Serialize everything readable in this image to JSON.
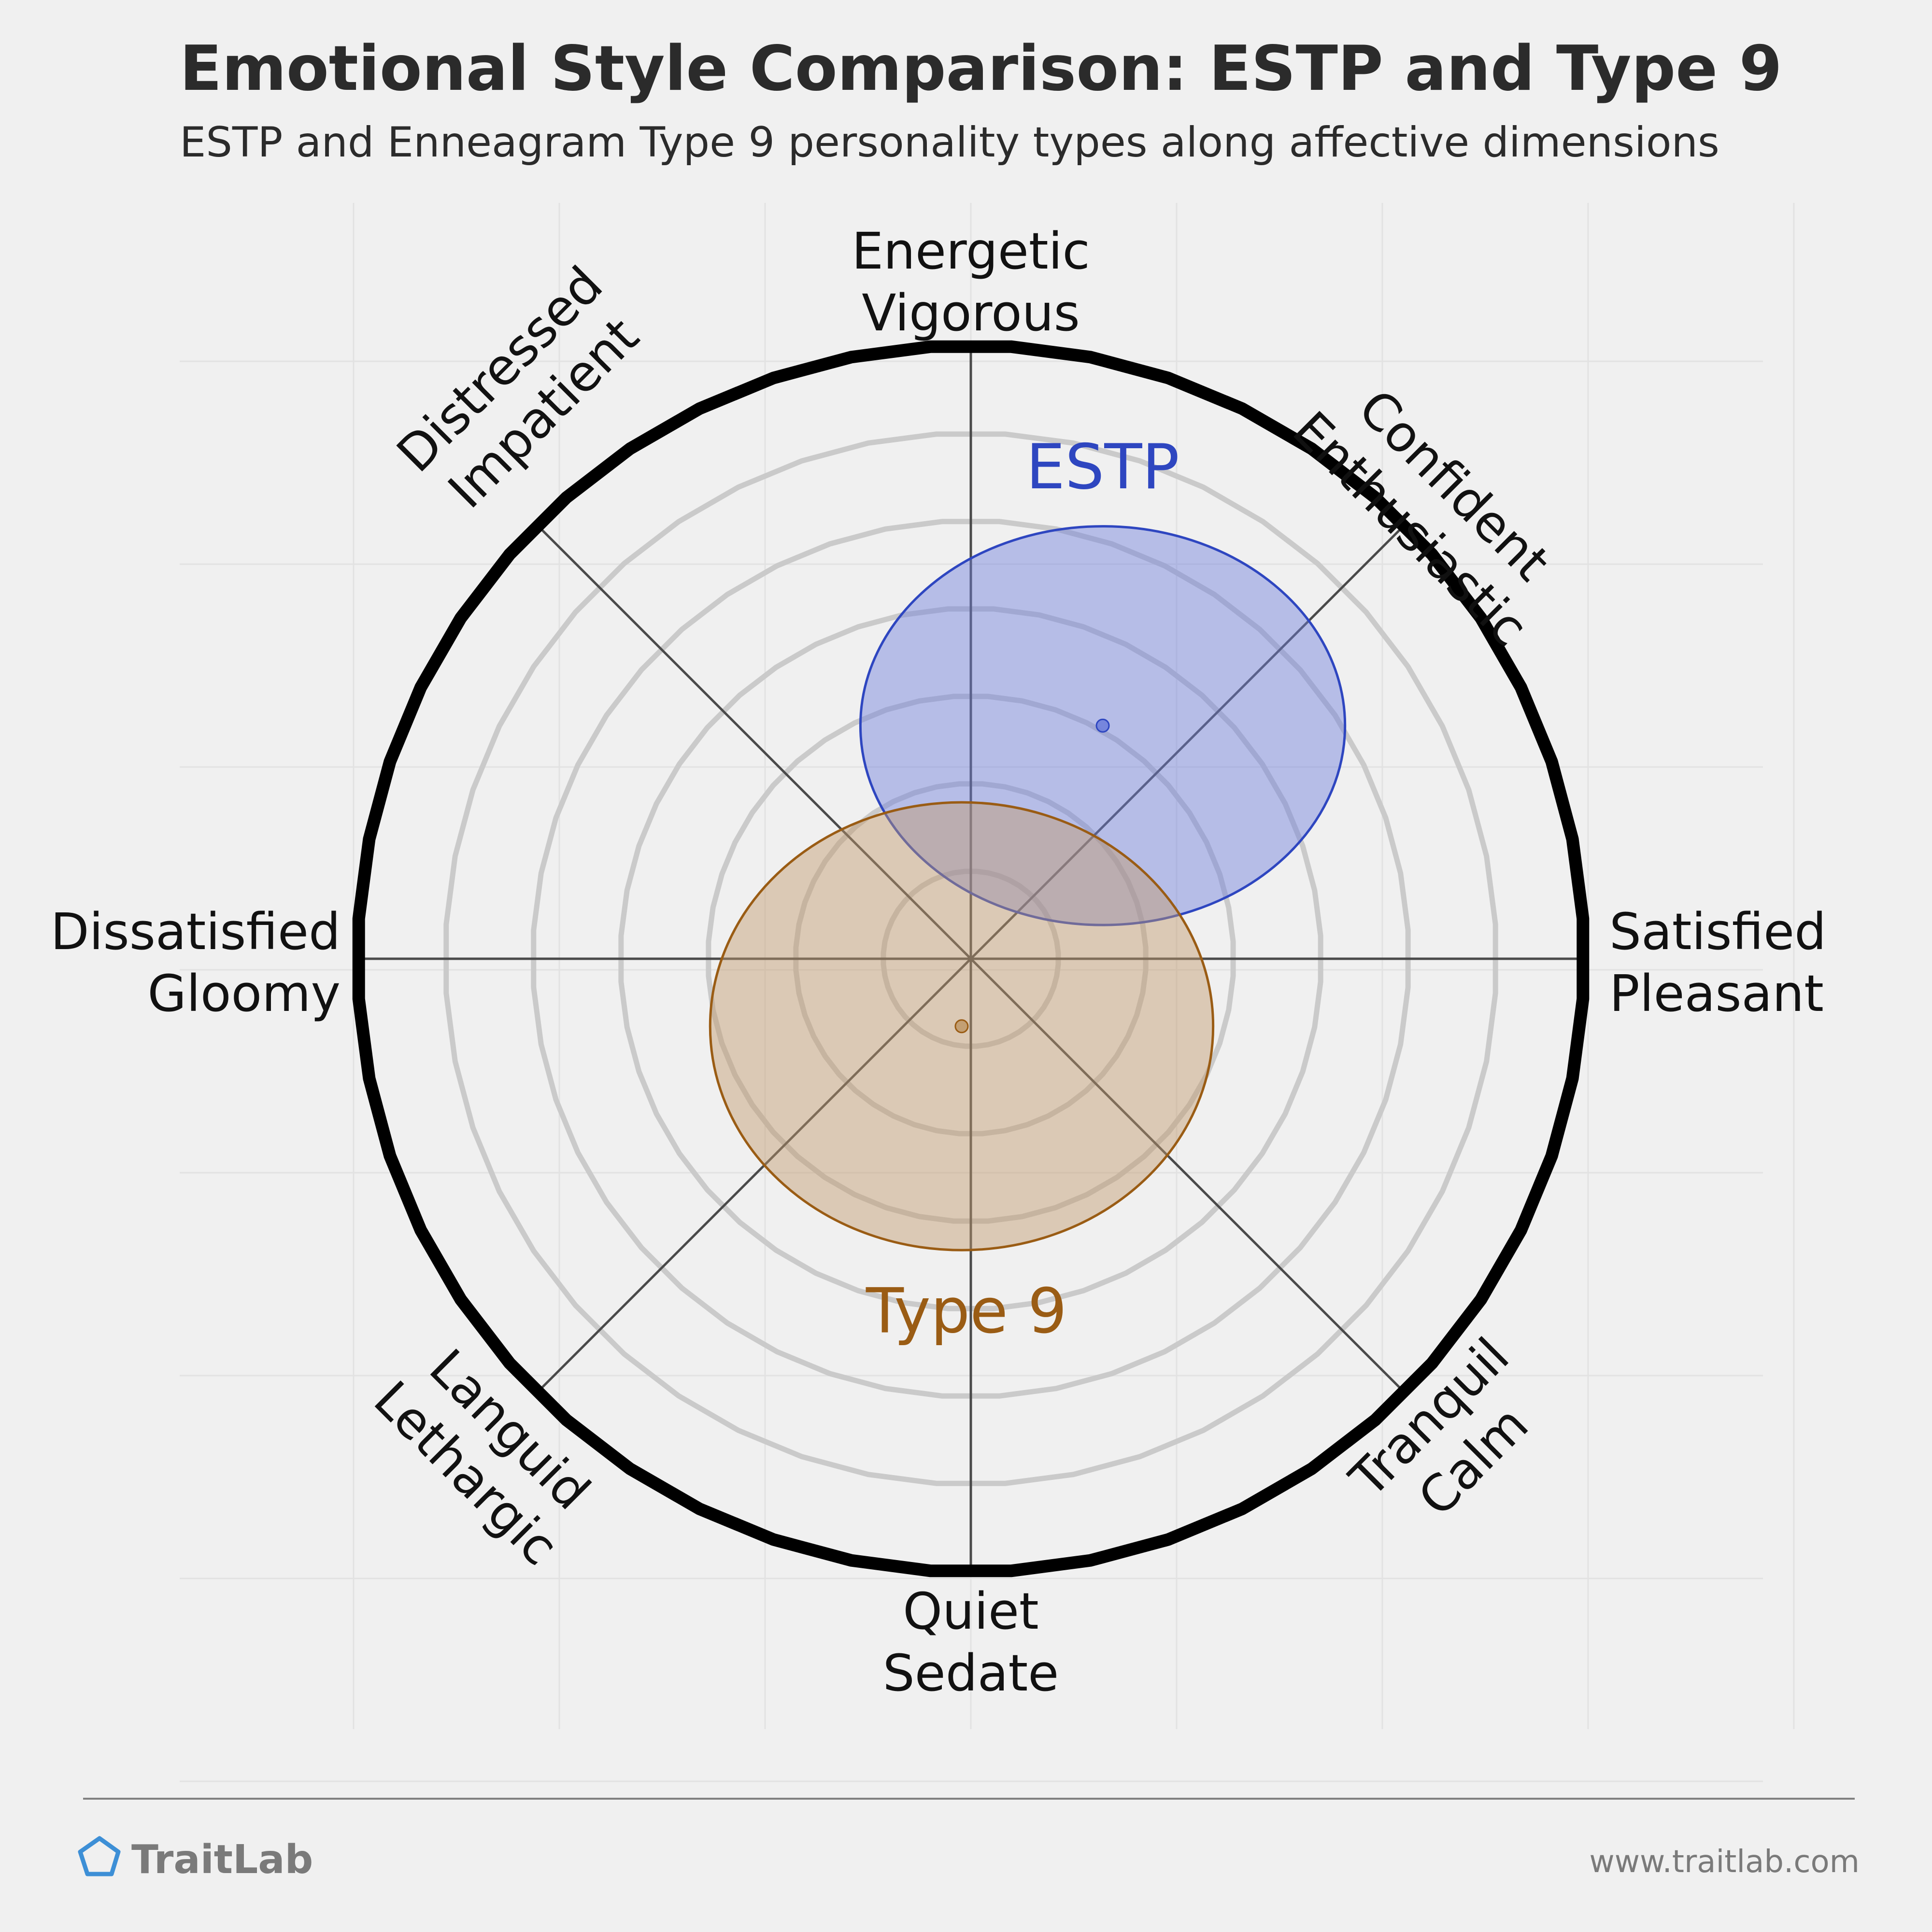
{
  "header": {
    "title": "Emotional Style Comparison: ESTP and Type 9",
    "subtitle": "ESTP and Enneagram Type 9 personality types along affective dimensions"
  },
  "chart_data": {
    "type": "scatter",
    "title": "Emotional Style Comparison: ESTP and Type 9",
    "subtitle": "ESTP and Enneagram Type 9 personality types along affective dimensions",
    "x_axis": {
      "negative_label": [
        "Dissatisfied",
        "Gloomy"
      ],
      "positive_label": [
        "Satisfied",
        "Pleasant"
      ]
    },
    "y_axis": {
      "positive_label": [
        "Energetic",
        "Vigorous"
      ],
      "negative_label": [
        "Quiet",
        "Sedate"
      ]
    },
    "diagonal_labels": {
      "upper_right": [
        "Confident",
        "Enthusiastic"
      ],
      "upper_left": [
        "Distressed",
        "Impatient"
      ],
      "lower_left": [
        "Languid",
        "Lethargic"
      ],
      "lower_right": [
        "Tranquil",
        "Calm"
      ]
    },
    "range": [
      -1,
      1
    ],
    "rings": 6,
    "grid": true,
    "series": [
      {
        "name": "ESTP",
        "x": 0.215,
        "y": 0.38,
        "spread_x": 0.395,
        "spread_y": 0.325,
        "color": "#2e46c0",
        "fill": "#6f7fdc"
      },
      {
        "name": "Type 9",
        "x": -0.015,
        "y": -0.11,
        "spread_x": 0.41,
        "spread_y": 0.365,
        "color": "#9a5c14",
        "fill": "#c09a6c"
      }
    ]
  },
  "footer": {
    "brand": "TraitLab",
    "url": "www.traitlab.com"
  },
  "colors": {
    "background": "#f0f0f0",
    "estp": "#2e46c0",
    "type9": "#9a5c14",
    "brand_icon": "#3d8fd6"
  },
  "icons": {
    "brand": "pentagon-logo-icon"
  }
}
